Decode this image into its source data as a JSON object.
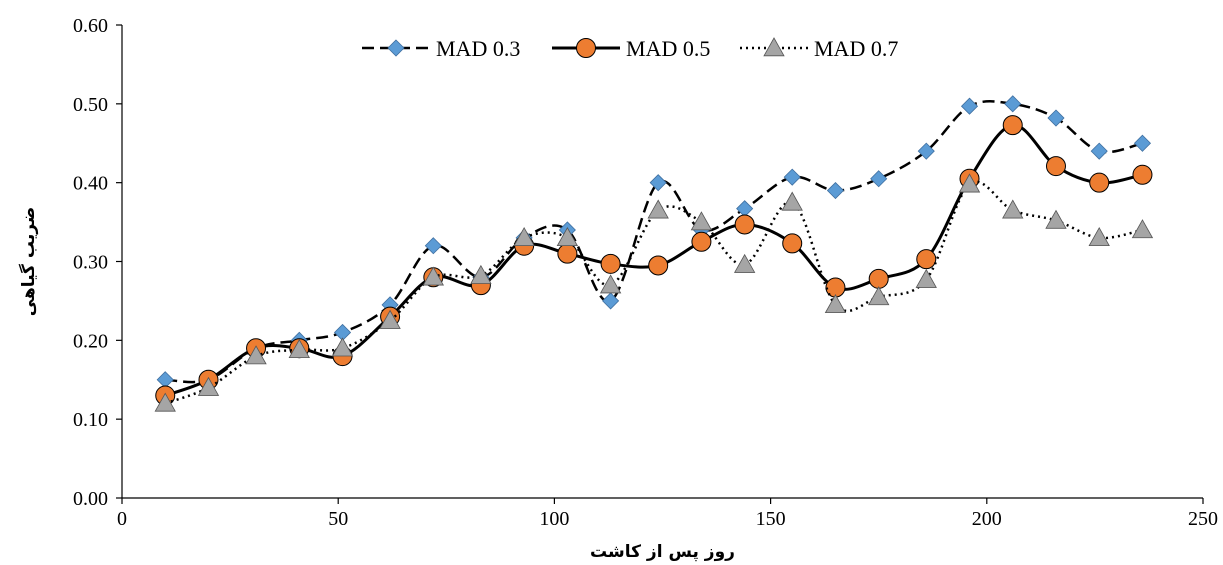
{
  "chart_data": {
    "type": "line",
    "xlabel": "روز پس از کاشت",
    "ylabel": "ضریب گیاهی",
    "xlim": [
      0,
      250
    ],
    "ylim": [
      0,
      0.6
    ],
    "x_ticks": [
      "0",
      "50",
      "100",
      "150",
      "200",
      "250"
    ],
    "y_ticks": [
      "0.00",
      "0.10",
      "0.20",
      "0.30",
      "0.40",
      "0.50",
      "0.60"
    ],
    "legend_position": "top-center",
    "grid": false,
    "series": [
      {
        "name": "MAD 0.3",
        "marker": "diamond",
        "line_style": "dashed",
        "color": "#5b9bd5",
        "x": [
          10,
          20,
          31,
          41,
          51,
          62,
          72,
          83,
          93,
          103,
          113,
          124,
          134,
          144,
          155,
          165,
          175,
          186,
          196,
          206,
          216,
          226,
          236
        ],
        "y": [
          0.15,
          0.15,
          0.19,
          0.2,
          0.21,
          0.245,
          0.32,
          0.28,
          0.33,
          0.34,
          0.25,
          0.4,
          0.34,
          0.367,
          0.407,
          0.39,
          0.405,
          0.44,
          0.497,
          0.5,
          0.482,
          0.44,
          0.45
        ]
      },
      {
        "name": "MAD 0.5",
        "marker": "circle",
        "line_style": "solid",
        "color": "#ed7d31",
        "x": [
          10,
          20,
          31,
          41,
          51,
          62,
          72,
          83,
          93,
          103,
          113,
          124,
          134,
          144,
          155,
          165,
          175,
          186,
          196,
          206,
          216,
          226,
          236
        ],
        "y": [
          0.13,
          0.15,
          0.19,
          0.19,
          0.18,
          0.23,
          0.28,
          0.27,
          0.32,
          0.31,
          0.297,
          0.295,
          0.325,
          0.347,
          0.323,
          0.267,
          0.278,
          0.303,
          0.405,
          0.473,
          0.421,
          0.4,
          0.41
        ]
      },
      {
        "name": "MAD 0.7",
        "marker": "triangle",
        "line_style": "dotted",
        "color": "#a5a5a5",
        "x": [
          10,
          20,
          31,
          41,
          51,
          62,
          72,
          83,
          93,
          103,
          113,
          124,
          134,
          144,
          155,
          165,
          175,
          186,
          196,
          206,
          216,
          226,
          236
        ],
        "y": [
          0.12,
          0.14,
          0.18,
          0.188,
          0.19,
          0.225,
          0.28,
          0.282,
          0.33,
          0.33,
          0.27,
          0.365,
          0.35,
          0.296,
          0.375,
          0.245,
          0.255,
          0.277,
          0.398,
          0.365,
          0.352,
          0.33,
          0.34
        ]
      }
    ]
  }
}
